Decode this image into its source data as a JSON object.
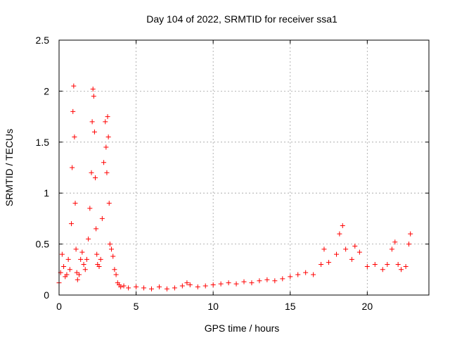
{
  "chart_data": {
    "type": "scatter",
    "title": "Day 104 of 2022, SRMTID for receiver ssa1",
    "xlabel": "GPS time / hours",
    "ylabel": "SRMTID / TECUs",
    "xlim": [
      0,
      24
    ],
    "ylim": [
      0,
      2.5
    ],
    "xticks": [
      0,
      5,
      10,
      15,
      20
    ],
    "xtick_labels": [
      "0",
      "5",
      "10",
      "15",
      "20"
    ],
    "yticks": [
      0,
      0.5,
      1,
      1.5,
      2,
      2.5
    ],
    "ytick_labels": [
      "0",
      "0.5",
      "1",
      "1.5",
      "2",
      "2.5"
    ],
    "grid": true,
    "marker": "+",
    "series": [
      {
        "name": "SRMTID",
        "color": "#ff0000",
        "x": [
          0.0,
          0.1,
          0.2,
          0.3,
          0.4,
          0.5,
          0.6,
          0.7,
          0.8,
          0.85,
          0.9,
          0.95,
          1.0,
          1.05,
          1.1,
          1.15,
          1.2,
          1.3,
          1.4,
          1.5,
          1.6,
          1.7,
          1.8,
          1.9,
          2.0,
          2.1,
          2.15,
          2.2,
          2.25,
          2.3,
          2.35,
          2.4,
          2.45,
          2.5,
          2.6,
          2.7,
          2.8,
          2.9,
          3.0,
          3.05,
          3.1,
          3.15,
          3.2,
          3.25,
          3.3,
          3.4,
          3.5,
          3.6,
          3.7,
          3.8,
          3.9,
          4.0,
          4.2,
          4.5,
          5.0,
          5.5,
          6.0,
          6.5,
          7.0,
          7.5,
          8.0,
          8.3,
          8.5,
          9.0,
          9.5,
          10.0,
          10.5,
          11.0,
          11.5,
          12.0,
          12.5,
          13.0,
          13.5,
          14.0,
          14.5,
          15.0,
          15.5,
          16.0,
          16.5,
          17.0,
          17.2,
          17.5,
          18.0,
          18.2,
          18.4,
          18.6,
          19.0,
          19.2,
          19.5,
          20.0,
          20.5,
          21.0,
          21.3,
          21.6,
          21.8,
          22.0,
          22.2,
          22.5,
          22.7,
          22.8
        ],
        "y": [
          0.12,
          0.22,
          0.4,
          0.28,
          0.18,
          0.2,
          0.35,
          0.25,
          0.7,
          1.25,
          1.8,
          2.05,
          1.55,
          0.9,
          0.45,
          0.22,
          0.15,
          0.2,
          0.35,
          0.42,
          0.3,
          0.25,
          0.35,
          0.55,
          0.85,
          1.2,
          1.7,
          2.02,
          1.95,
          1.6,
          1.15,
          0.65,
          0.4,
          0.3,
          0.28,
          0.35,
          0.75,
          1.3,
          1.7,
          1.45,
          1.2,
          1.75,
          1.55,
          0.9,
          0.5,
          0.45,
          0.38,
          0.25,
          0.2,
          0.12,
          0.1,
          0.08,
          0.09,
          0.07,
          0.08,
          0.07,
          0.06,
          0.08,
          0.06,
          0.07,
          0.09,
          0.12,
          0.1,
          0.08,
          0.09,
          0.1,
          0.11,
          0.12,
          0.11,
          0.13,
          0.12,
          0.14,
          0.15,
          0.14,
          0.16,
          0.18,
          0.2,
          0.22,
          0.2,
          0.3,
          0.45,
          0.32,
          0.4,
          0.6,
          0.68,
          0.45,
          0.35,
          0.48,
          0.42,
          0.28,
          0.3,
          0.25,
          0.3,
          0.45,
          0.52,
          0.3,
          0.25,
          0.28,
          0.5,
          0.6
        ]
      }
    ]
  }
}
